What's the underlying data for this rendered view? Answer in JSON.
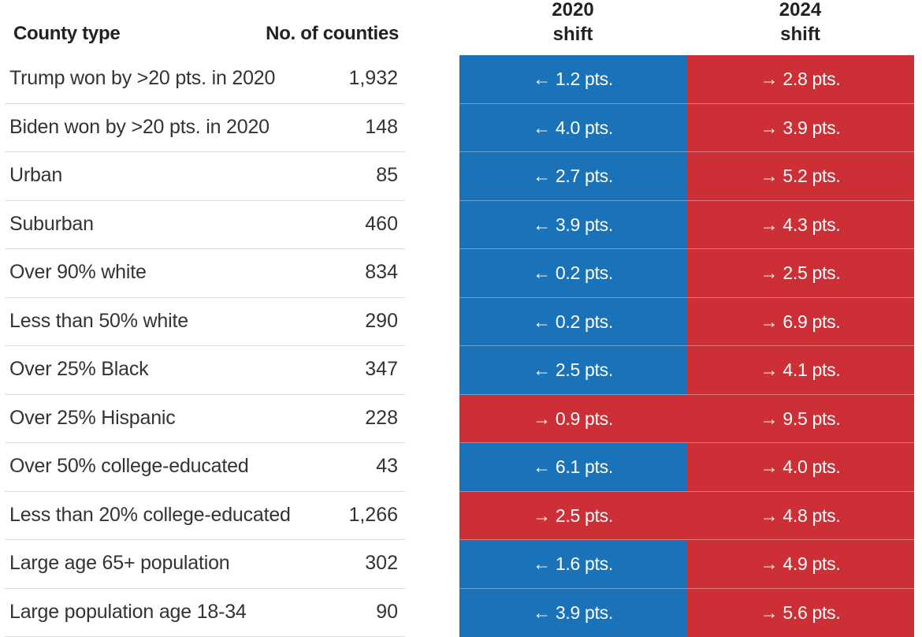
{
  "header": {
    "county_type": "County type",
    "no_of_counties": "No. of counties",
    "shift_2020_year": "2020",
    "shift_2020_word": "shift",
    "shift_2024_year": "2024",
    "shift_2024_word": "shift"
  },
  "colors": {
    "dem": "#1a72b8",
    "rep": "#cc2f35"
  },
  "chart_data": {
    "type": "table",
    "columns": [
      "County type",
      "No. of counties",
      "2020 shift",
      "2024 shift"
    ],
    "rows": [
      {
        "label": "Trump won by >20 pts. in 2020",
        "count": "1,932",
        "s2020": "← 1.2 pts.",
        "d2020": "dem",
        "s2024": "→ 2.8 pts.",
        "d2024": "rep"
      },
      {
        "label": "Biden won by >20 pts. in 2020",
        "count": "148",
        "s2020": "← 4.0 pts.",
        "d2020": "dem",
        "s2024": "→ 3.9 pts.",
        "d2024": "rep"
      },
      {
        "label": "Urban",
        "count": "85",
        "s2020": "← 2.7 pts.",
        "d2020": "dem",
        "s2024": "→ 5.2 pts.",
        "d2024": "rep"
      },
      {
        "label": "Suburban",
        "count": "460",
        "s2020": "← 3.9 pts.",
        "d2020": "dem",
        "s2024": "→ 4.3 pts.",
        "d2024": "rep"
      },
      {
        "label": "Over 90% white",
        "count": "834",
        "s2020": "← 0.2 pts.",
        "d2020": "dem",
        "s2024": "→ 2.5 pts.",
        "d2024": "rep"
      },
      {
        "label": "Less than 50% white",
        "count": "290",
        "s2020": "← 0.2 pts.",
        "d2020": "dem",
        "s2024": "→ 6.9 pts.",
        "d2024": "rep"
      },
      {
        "label": "Over 25% Black",
        "count": "347",
        "s2020": "← 2.5 pts.",
        "d2020": "dem",
        "s2024": "→ 4.1 pts.",
        "d2024": "rep"
      },
      {
        "label": "Over 25% Hispanic",
        "count": "228",
        "s2020": "→ 0.9 pts.",
        "d2020": "rep",
        "s2024": "→ 9.5 pts.",
        "d2024": "rep"
      },
      {
        "label": "Over 50% college-educated",
        "count": "43",
        "s2020": "← 6.1 pts.",
        "d2020": "dem",
        "s2024": "→ 4.0 pts.",
        "d2024": "rep"
      },
      {
        "label": "Less than 20% college-educated",
        "count": "1,266",
        "s2020": "→ 2.5 pts.",
        "d2020": "rep",
        "s2024": "→ 4.8 pts.",
        "d2024": "rep"
      },
      {
        "label": "Large age 65+ population",
        "count": "302",
        "s2020": "← 1.6 pts.",
        "d2020": "dem",
        "s2024": "→ 4.9 pts.",
        "d2024": "rep"
      },
      {
        "label": "Large population age 18-34",
        "count": "90",
        "s2020": "← 3.9 pts.",
        "d2020": "dem",
        "s2024": "→ 5.6 pts.",
        "d2024": "rep"
      }
    ]
  }
}
